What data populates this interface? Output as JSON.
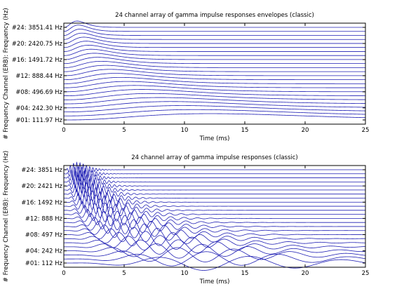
{
  "colors": {
    "trace": "#1f1fb4",
    "axes": "#000000",
    "background": "#ffffff"
  },
  "chart_data": [
    {
      "type": "line",
      "title": "24 channel array of gamma impulse responses envelopes (classic)",
      "xlabel": "Time (ms)",
      "ylabel": "# Frequency Channel (ERB): Frequency (Hz)",
      "xlim": [
        0,
        25
      ],
      "xticks": [
        "0",
        "5",
        "10",
        "15",
        "20",
        "25"
      ],
      "ytick_labels": [
        "#01:  111.97 Hz",
        "#04:  242.30 Hz",
        "#08:  496.69 Hz",
        "#12:  888.44 Hz",
        "#16: 1491.72 Hz",
        "#20: 2420.75 Hz",
        "#24: 3851.41 Hz"
      ],
      "n_channels": 24,
      "labeled_channels": [
        1,
        4,
        8,
        12,
        16,
        20,
        24
      ],
      "center_frequencies_hz": [
        111.97,
        242.3,
        496.69,
        888.44,
        1491.72,
        2420.75,
        3851.41
      ],
      "grid": false
    },
    {
      "type": "line",
      "title": "24 channel array of gamma impulse responses (classic)",
      "xlabel": "Time (ms)",
      "ylabel": "# Frequency Channel (ERB): Frequency (Hz)",
      "xlim": [
        0,
        25
      ],
      "xticks": [
        "0",
        "5",
        "10",
        "15",
        "20",
        "25"
      ],
      "ytick_labels": [
        "#01:  112 Hz",
        "#04:  242 Hz",
        "#08:  497 Hz",
        "#12:  888 Hz",
        "#16: 1492 Hz",
        "#20: 2421 Hz",
        "#24: 3851 Hz"
      ],
      "n_channels": 24,
      "labeled_channels": [
        1,
        4,
        8,
        12,
        16,
        20,
        24
      ],
      "center_frequencies_hz": [
        112,
        242,
        497,
        888,
        1492,
        2421,
        3851
      ],
      "grid": false
    }
  ]
}
